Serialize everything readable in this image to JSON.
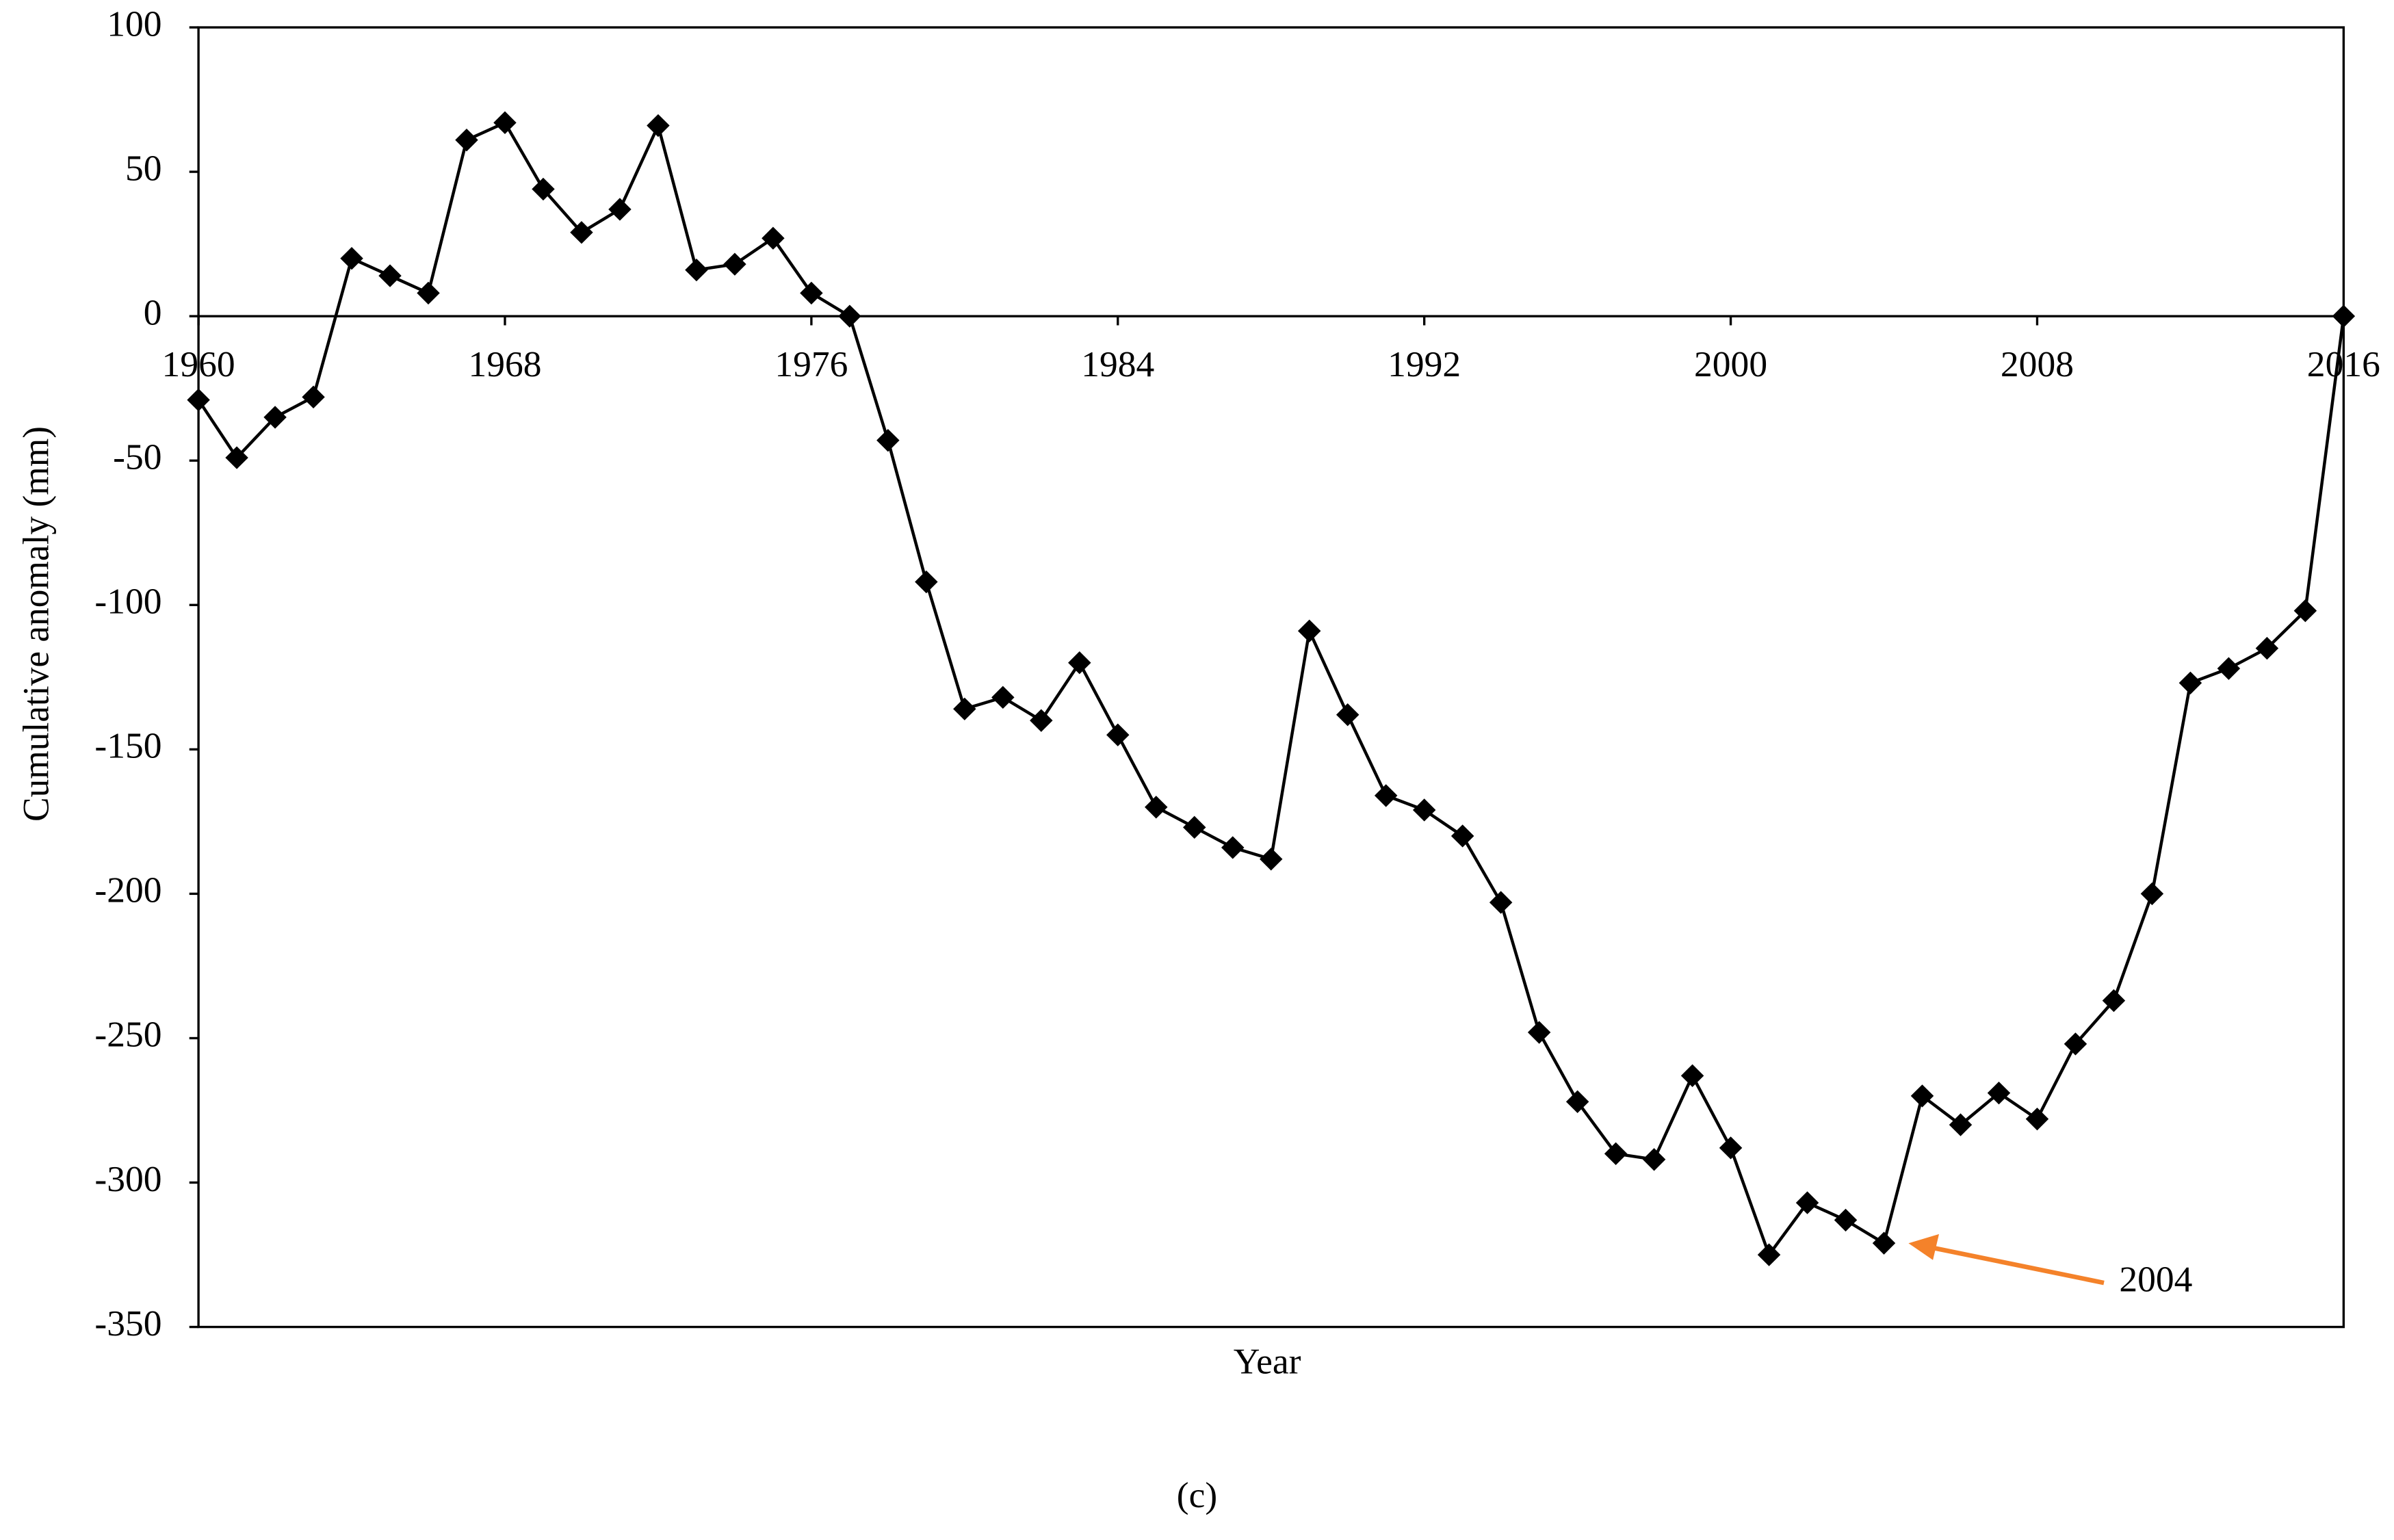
{
  "chart_data": {
    "type": "line",
    "x_label": "Year",
    "y_label": "Cumulative anomaly (mm)",
    "caption": "(c)",
    "x": [
      1960,
      1961,
      1962,
      1963,
      1964,
      1965,
      1966,
      1967,
      1968,
      1969,
      1970,
      1971,
      1972,
      1973,
      1974,
      1975,
      1976,
      1977,
      1978,
      1979,
      1980,
      1981,
      1982,
      1983,
      1984,
      1985,
      1986,
      1987,
      1988,
      1989,
      1990,
      1991,
      1992,
      1993,
      1994,
      1995,
      1996,
      1997,
      1998,
      1999,
      2000,
      2001,
      2002,
      2003,
      2004,
      2005,
      2006,
      2007,
      2008,
      2009,
      2010,
      2011,
      2012,
      2013,
      2014,
      2015,
      2016
    ],
    "series": [
      {
        "color": "#000000",
        "values": [
          -29,
          -49,
          -35,
          -28,
          20,
          14,
          8,
          61,
          67,
          44,
          29,
          37,
          66,
          16,
          18,
          27,
          8,
          0,
          -43,
          -92,
          -136,
          -132,
          -140,
          -120,
          -145,
          -170,
          -177,
          -184,
          -188,
          -109,
          -138,
          -166,
          -171,
          -180,
          -203,
          -248,
          -272,
          -290,
          -292,
          -263,
          -288,
          -325,
          -307,
          -313,
          -321,
          -270,
          -280,
          -269,
          -278,
          -252,
          -237,
          -200,
          -127,
          -122,
          -115,
          -102,
          0
        ]
      }
    ],
    "xlim": [
      1960,
      2016
    ],
    "xticks": [
      1960,
      1968,
      1976,
      1984,
      1992,
      2000,
      2008,
      2016
    ],
    "ylim": [
      -350,
      100
    ],
    "yticks": [
      -350,
      -300,
      -250,
      -200,
      -150,
      -100,
      -50,
      0,
      50,
      100
    ],
    "grid": false,
    "marker": "diamond",
    "annotations": [
      {
        "text": "2004",
        "color": "#f4822a"
      }
    ]
  }
}
